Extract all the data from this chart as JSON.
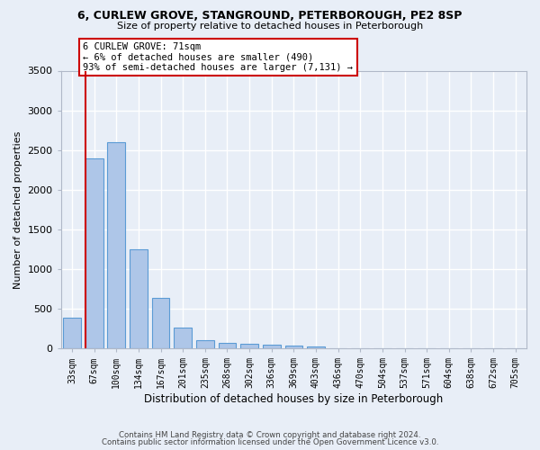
{
  "title1": "6, CURLEW GROVE, STANGROUND, PETERBOROUGH, PE2 8SP",
  "title2": "Size of property relative to detached houses in Peterborough",
  "xlabel": "Distribution of detached houses by size in Peterborough",
  "ylabel": "Number of detached properties",
  "categories": [
    "33sqm",
    "67sqm",
    "100sqm",
    "134sqm",
    "167sqm",
    "201sqm",
    "235sqm",
    "268sqm",
    "302sqm",
    "336sqm",
    "369sqm",
    "403sqm",
    "436sqm",
    "470sqm",
    "504sqm",
    "537sqm",
    "571sqm",
    "604sqm",
    "638sqm",
    "672sqm",
    "705sqm"
  ],
  "values": [
    390,
    2400,
    2600,
    1250,
    640,
    260,
    100,
    65,
    60,
    50,
    40,
    30,
    5,
    3,
    2,
    2,
    1,
    1,
    1,
    0,
    0
  ],
  "bar_color": "#aec6e8",
  "bar_edge_color": "#5b9bd5",
  "vline_color": "#cc0000",
  "vline_index": 1.0,
  "annotation_text": "6 CURLEW GROVE: 71sqm\n← 6% of detached houses are smaller (490)\n93% of semi-detached houses are larger (7,131) →",
  "annotation_box_facecolor": "#ffffff",
  "annotation_box_edgecolor": "#cc0000",
  "ylim": [
    0,
    3500
  ],
  "yticks": [
    0,
    500,
    1000,
    1500,
    2000,
    2500,
    3000,
    3500
  ],
  "bg_color": "#e8eef7",
  "grid_color": "#ffffff",
  "footer1": "Contains HM Land Registry data © Crown copyright and database right 2024.",
  "footer2": "Contains public sector information licensed under the Open Government Licence v3.0."
}
